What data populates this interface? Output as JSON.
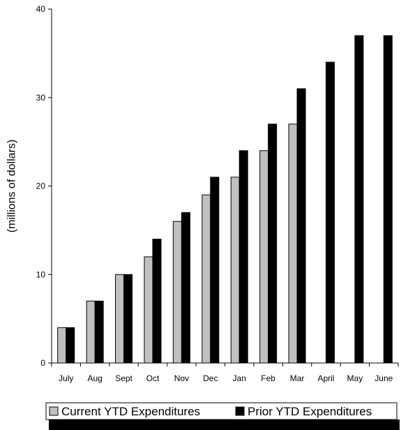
{
  "chart_data": {
    "type": "bar",
    "categories": [
      "July",
      "Aug",
      "Sept",
      "Oct",
      "Nov",
      "Dec",
      "Jan",
      "Feb",
      "Mar",
      "April",
      "May",
      "June"
    ],
    "series": [
      {
        "name": "Current YTD Expenditures",
        "color": "#c0c0c0",
        "values": [
          4,
          7,
          10,
          12,
          16,
          19,
          21,
          24,
          27,
          null,
          null,
          null
        ]
      },
      {
        "name": "Prior YTD Expenditures",
        "color": "#000000",
        "values": [
          4,
          7,
          10,
          14,
          17,
          21,
          24,
          27,
          31,
          34,
          37,
          37
        ]
      }
    ],
    "title": "",
    "xlabel": "",
    "ylabel": "(millions of dollars)",
    "ylim": [
      0,
      40
    ],
    "yticks": [
      "0",
      "10",
      "20",
      "30",
      "40"
    ],
    "grid": false,
    "legend_position": "bottom"
  }
}
